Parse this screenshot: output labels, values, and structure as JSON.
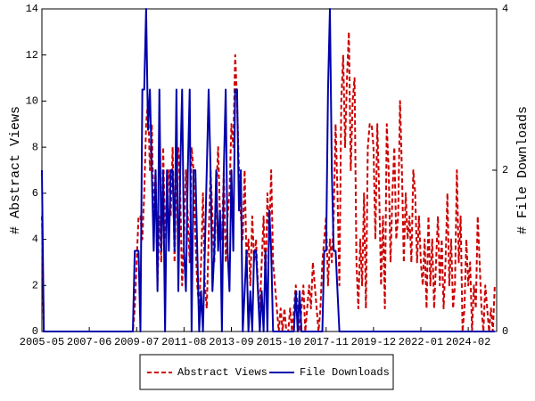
{
  "chart_data": {
    "type": "line",
    "ylabel": "# Abstract Views",
    "y2label": "# File Downloads",
    "x": [
      "2005-05",
      "2005-06",
      "2005-07",
      "2005-08",
      "2005-09",
      "2005-10",
      "2005-11",
      "2005-12",
      "2006-01",
      "2006-02",
      "2006-03",
      "2006-04",
      "2006-05",
      "2006-06",
      "2006-07",
      "2006-08",
      "2006-09",
      "2006-10",
      "2006-11",
      "2006-12",
      "2007-01",
      "2007-02",
      "2007-03",
      "2007-04",
      "2007-05",
      "2007-06",
      "2007-07",
      "2007-08",
      "2007-09",
      "2007-10",
      "2007-11",
      "2007-12",
      "2008-01",
      "2008-02",
      "2008-03",
      "2008-04",
      "2008-05",
      "2008-06",
      "2008-07",
      "2008-08",
      "2008-09",
      "2008-10",
      "2008-11",
      "2008-12",
      "2009-01",
      "2009-02",
      "2009-03",
      "2009-04",
      "2009-05",
      "2009-06",
      "2009-07",
      "2009-08",
      "2009-09",
      "2009-10",
      "2009-11",
      "2009-12",
      "2010-01",
      "2010-02",
      "2010-03",
      "2010-04",
      "2010-05",
      "2010-06",
      "2010-07",
      "2010-08",
      "2010-09",
      "2010-10",
      "2010-11",
      "2010-12",
      "2011-01",
      "2011-02",
      "2011-03",
      "2011-04",
      "2011-05",
      "2011-06",
      "2011-07",
      "2011-08",
      "2011-09",
      "2011-10",
      "2011-11",
      "2011-12",
      "2012-01",
      "2012-02",
      "2012-03",
      "2012-04",
      "2012-05",
      "2012-06",
      "2012-07",
      "2012-08",
      "2012-09",
      "2012-10",
      "2012-11",
      "2012-12",
      "2013-01",
      "2013-02",
      "2013-03",
      "2013-04",
      "2013-05",
      "2013-06",
      "2013-07",
      "2013-08",
      "2013-09",
      "2013-10",
      "2013-11",
      "2013-12",
      "2014-01",
      "2014-02",
      "2014-03",
      "2014-04",
      "2014-05",
      "2014-06",
      "2014-07",
      "2014-08",
      "2014-09",
      "2014-10",
      "2014-11",
      "2014-12",
      "2015-01",
      "2015-02",
      "2015-03",
      "2015-04",
      "2015-05",
      "2015-06",
      "2015-07",
      "2015-08",
      "2015-09",
      "2015-10",
      "2015-11",
      "2015-12",
      "2016-01",
      "2016-02",
      "2016-03",
      "2016-04",
      "2016-05",
      "2016-06",
      "2016-07",
      "2016-08",
      "2016-09",
      "2016-10",
      "2016-11",
      "2016-12",
      "2017-01",
      "2017-02",
      "2017-03",
      "2017-04",
      "2017-05",
      "2017-06",
      "2017-07",
      "2017-08",
      "2017-09",
      "2017-10",
      "2017-11",
      "2017-12",
      "2018-01",
      "2018-02",
      "2018-03",
      "2018-04",
      "2018-05",
      "2018-06",
      "2018-07",
      "2018-08",
      "2018-09",
      "2018-10",
      "2018-11",
      "2018-12",
      "2019-01",
      "2019-02",
      "2019-03",
      "2019-04",
      "2019-05",
      "2019-06",
      "2019-07",
      "2019-08",
      "2019-09",
      "2019-10",
      "2019-11",
      "2019-12",
      "2020-01",
      "2020-02",
      "2020-03",
      "2020-04",
      "2020-05",
      "2020-06",
      "2020-07",
      "2020-08",
      "2020-09",
      "2020-10",
      "2020-11",
      "2020-12",
      "2021-01",
      "2021-02",
      "2021-03",
      "2021-04",
      "2021-05",
      "2021-06",
      "2021-07",
      "2021-08",
      "2021-09",
      "2021-10",
      "2021-11",
      "2021-12",
      "2022-01",
      "2022-02",
      "2022-03",
      "2022-04",
      "2022-05",
      "2022-06",
      "2022-07",
      "2022-08",
      "2022-09",
      "2022-10",
      "2022-11",
      "2022-12",
      "2023-01",
      "2023-02",
      "2023-03",
      "2023-04",
      "2023-05",
      "2023-06",
      "2023-07",
      "2023-08",
      "2023-09",
      "2023-10",
      "2023-11",
      "2023-12",
      "2024-01",
      "2024-02",
      "2024-03",
      "2024-04",
      "2024-05",
      "2024-06",
      "2024-07",
      "2024-08",
      "2024-09",
      "2024-10",
      "2024-11",
      "2024-12",
      "2025-01",
      "2025-02",
      "2025-03",
      "2025-04"
    ],
    "series": [
      {
        "name": "Abstract Views",
        "color": "#cc0000",
        "dash": true,
        "values": [
          5,
          0,
          0,
          0,
          0,
          0,
          0,
          0,
          0,
          0,
          0,
          0,
          0,
          0,
          0,
          0,
          0,
          0,
          0,
          0,
          0,
          0,
          0,
          0,
          0,
          0,
          0,
          0,
          0,
          0,
          0,
          0,
          0,
          0,
          0,
          0,
          0,
          0,
          0,
          0,
          0,
          0,
          0,
          0,
          0,
          0,
          0,
          0,
          0,
          1,
          3,
          5,
          5,
          4,
          6,
          9,
          10,
          7,
          9,
          5,
          7,
          2,
          5,
          3,
          8,
          4,
          6,
          7,
          5,
          8,
          3,
          7,
          8,
          6,
          2,
          4,
          7,
          5,
          3,
          8,
          7,
          4,
          2,
          1,
          3,
          6,
          2,
          1,
          4,
          7,
          5,
          3,
          6,
          8,
          5,
          4,
          7,
          3,
          5,
          6,
          9,
          8,
          12,
          10,
          7,
          5,
          4,
          7,
          3,
          4,
          2,
          5,
          3,
          4,
          2,
          1,
          3,
          5,
          2,
          6,
          4,
          7,
          3,
          2,
          1,
          0,
          1,
          0,
          1,
          0,
          0,
          1,
          0,
          1,
          2,
          1,
          0,
          1,
          2,
          0,
          1,
          2,
          1,
          3,
          2,
          1,
          0,
          1,
          3,
          4,
          5,
          2,
          4,
          3,
          5,
          9,
          6,
          2,
          10,
          12,
          8,
          11,
          13,
          7,
          10,
          11,
          3,
          1,
          4,
          2,
          6,
          1,
          8,
          9,
          9,
          8,
          4,
          9,
          6,
          2,
          5,
          1,
          9,
          7,
          3,
          6,
          8,
          4,
          5,
          10,
          7,
          3,
          6,
          4,
          5,
          3,
          7,
          6,
          3,
          5,
          3,
          2,
          4,
          1,
          5,
          2,
          4,
          1,
          3,
          5,
          2,
          4,
          1,
          3,
          6,
          2,
          4,
          1,
          2,
          7,
          3,
          5,
          0,
          1,
          4,
          2,
          3,
          0,
          2,
          1,
          5,
          3,
          1,
          0,
          2,
          1,
          0,
          1,
          0,
          2
        ]
      },
      {
        "name": "File Downloads",
        "color": "#0000aa",
        "dash": false,
        "axis": "y2",
        "values": [
          2,
          0,
          0,
          0,
          0,
          0,
          0,
          0,
          0,
          0,
          0,
          0,
          0,
          0,
          0,
          0,
          0,
          0,
          0,
          0,
          0,
          0,
          0,
          0,
          0,
          0,
          0,
          0,
          0,
          0,
          0,
          0,
          0,
          0,
          0,
          0,
          0,
          0,
          0,
          0,
          0,
          0,
          0,
          0,
          0,
          0,
          0,
          0,
          0,
          1,
          1,
          1,
          0,
          3,
          3,
          4,
          2.5,
          3,
          2,
          1,
          2,
          0.5,
          3,
          1,
          2,
          0,
          2,
          1,
          2,
          2,
          1,
          3,
          0.5,
          2,
          3,
          1,
          0.5,
          2,
          3,
          0,
          2,
          2,
          1,
          0,
          0.5,
          0,
          1,
          2,
          3,
          2,
          0.5,
          1,
          2,
          1,
          1.5,
          0,
          2,
          3,
          1,
          0.5,
          2,
          1,
          3,
          3,
          1.5,
          2,
          0,
          0.5,
          1,
          0,
          0.5,
          0,
          1,
          1,
          0.5,
          0,
          0.5,
          0,
          1,
          0,
          1.5,
          1,
          0,
          0,
          0,
          0,
          0,
          0,
          0,
          0,
          0,
          0,
          0,
          0,
          0.5,
          0,
          0.5,
          0,
          0,
          0,
          0,
          0,
          0,
          0,
          0,
          0,
          0,
          0,
          0,
          1,
          1,
          3,
          4,
          2,
          1,
          1,
          0.5,
          0,
          0,
          0,
          0,
          0,
          0,
          0,
          0,
          0,
          0,
          0,
          0,
          0,
          0,
          0,
          0,
          0,
          0,
          0,
          0,
          0,
          0,
          0,
          0,
          0,
          0,
          0,
          0,
          0,
          0,
          0,
          0,
          0,
          0,
          0,
          0,
          0,
          0,
          0,
          0,
          0,
          0,
          0,
          0,
          0,
          0,
          0,
          0,
          0,
          0,
          0,
          0,
          0,
          0,
          0,
          0,
          0,
          0,
          0,
          0,
          0,
          0,
          0,
          0,
          0,
          0,
          0,
          0,
          0,
          0,
          0,
          0,
          0,
          0,
          0,
          0,
          0,
          0,
          0,
          0,
          0,
          0,
          0
        ]
      }
    ],
    "xlim": [
      "2005-05",
      "2025-05"
    ],
    "xticks": [
      "2005-05",
      "2007-06",
      "2009-07",
      "2011-08",
      "2013-09",
      "2015-10",
      "2017-11",
      "2019-12",
      "2022-01",
      "2024-02"
    ],
    "ylim": [
      0,
      14
    ],
    "yticks": [
      0,
      2,
      4,
      6,
      8,
      10,
      12,
      14
    ],
    "y2lim": [
      0,
      4
    ],
    "y2ticks": [
      0,
      2,
      4
    ],
    "grid": false,
    "legend": "bottom"
  }
}
